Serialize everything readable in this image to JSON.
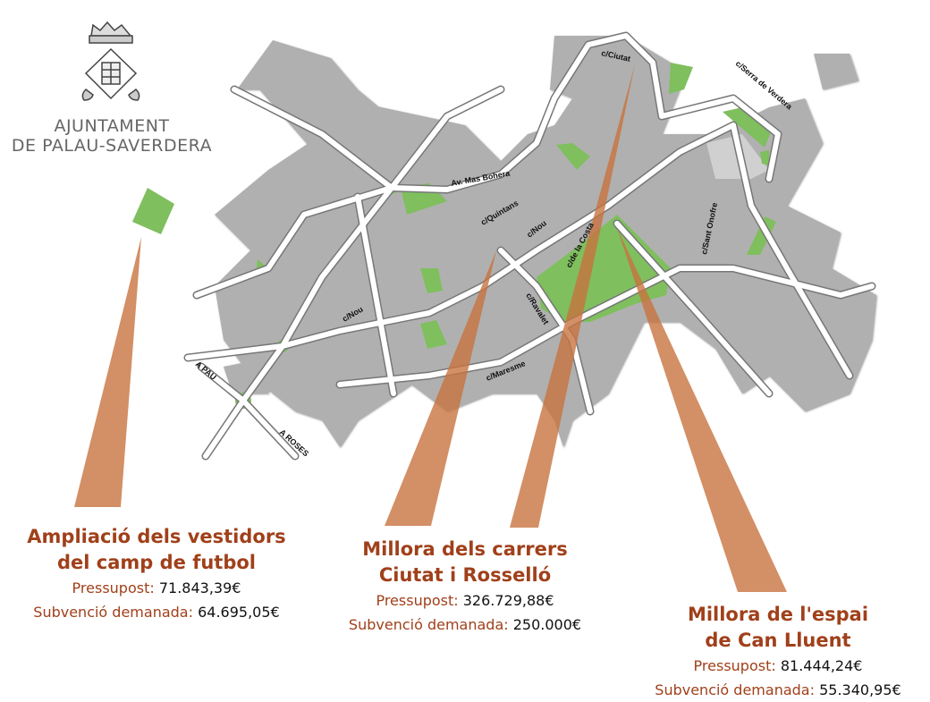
{
  "logo": {
    "line1": "AJUNTAMENT",
    "line2": "DE PALAU-SAVERDERA",
    "icon": "coat-of-arms"
  },
  "colors": {
    "blocks": "#b0b0b0",
    "green_areas": "#7fbf5e",
    "beams": "#c8733f",
    "title_text": "#a0401a"
  },
  "streets": [
    "c/Ciutat",
    "c/Serra de Verdera",
    "Av. Mas Bohera",
    "c/Quintans",
    "c/Nou",
    "c/de la Costa",
    "c/Sant Onofre",
    "c/Nou",
    "c/Ravalet",
    "c/Maresme",
    "A PAU",
    "A ROSES"
  ],
  "projects": [
    {
      "title1": "Ampliació dels vestidors",
      "title2": "del camp de futbol",
      "budget_label": "Pressupost:",
      "budget": "71.843,39€",
      "grant_label": "Subvenció demanada:",
      "grant": "64.695,05€"
    },
    {
      "title1": "Millora dels carrers",
      "title2": "Ciutat i Rosselló",
      "budget_label": "Pressupost:",
      "budget": "326.729,88€",
      "grant_label": "Subvenció demanada:",
      "grant": "250.000€"
    },
    {
      "title1": "Millora de l'espai",
      "title2": "de Can Lluent",
      "budget_label": "Pressupost:",
      "budget": "81.444,24€",
      "grant_label": "Subvenció demanada:",
      "grant": "55.340,95€"
    }
  ]
}
